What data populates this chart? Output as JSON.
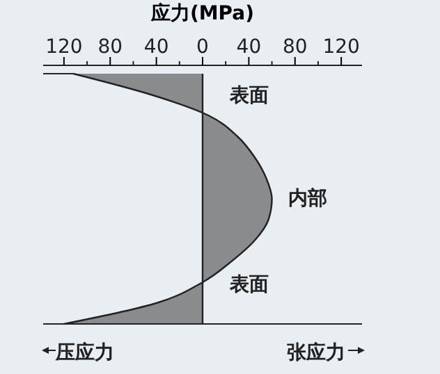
{
  "chart_data": {
    "type": "area",
    "orientation": "horizontal",
    "xlabel": "应力(MPa)",
    "categories": [
      null,
      null,
      null,
      null,
      null,
      null,
      null,
      null,
      null,
      null,
      null,
      null,
      null
    ],
    "series": [
      {
        "color": "#6a6a6a",
        "values": [
          -112,
          -45,
          5,
          30,
          45,
          55,
          60,
          57,
          45,
          25,
          0,
          -40,
          -120
        ]
      }
    ],
    "xlim": [
      -138,
      138
    ],
    "xticks": [
      {
        "value": -120,
        "label": "120"
      },
      {
        "value": -80,
        "label": "80"
      },
      {
        "value": -40,
        "label": "40"
      },
      0,
      40,
      80,
      120
    ],
    "tick_labels": "x",
    "annotations": [
      "表面",
      "内部",
      "表面",
      "压应力",
      "张应力"
    ]
  }
}
